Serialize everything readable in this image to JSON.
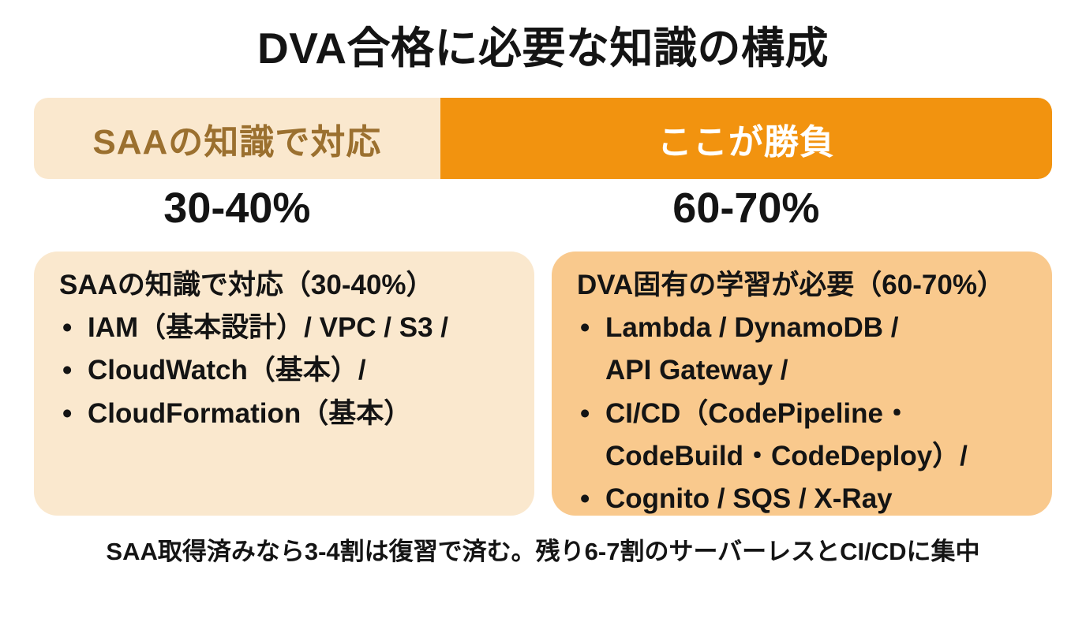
{
  "page": {
    "title": "DVA合格に必要な知識の構成",
    "footer_note": "SAA取得済みなら3-4割は復習で済む。残り6-7割のサーバーレスとCI/CDに集中"
  },
  "colors": {
    "background": "#FFFFFF",
    "cream": "#FAE8CE",
    "orange": "#F2930F",
    "light_orange": "#F9C98D",
    "brown_text": "#9B702F",
    "text": "#141414",
    "bar_label_light": "#FFFFFF"
  },
  "bar": {
    "left": {
      "label": "SAAの知識で対応",
      "percent": "30-40%"
    },
    "right": {
      "label": "ここが勝負",
      "percent": "60-70%"
    }
  },
  "boxes": {
    "left": {
      "heading": "SAAの知識で対応（30-40%）",
      "items": [
        "IAM（基本設計）/ VPC / S3 /",
        "CloudWatch（基本）/",
        "CloudFormation（基本）"
      ]
    },
    "right": {
      "heading": "DVA固有の学習が必要（60-70%）",
      "items": [
        "Lambda / DynamoDB /\nAPI Gateway /",
        "CI/CD（CodePipeline・\nCodeBuild・CodeDeploy）/",
        "Cognito / SQS / X-Ray"
      ]
    }
  },
  "chart_data": {
    "type": "bar",
    "subtype": "stacked-percentage-bar",
    "title": "DVA合格に必要な知識の構成",
    "orientation": "horizontal",
    "xlim": [
      0,
      100
    ],
    "segments": [
      {
        "label": "SAAの知識で対応",
        "range_label": "30-40%",
        "value_min": 30,
        "value_max": 40,
        "approx_width_percent": 40,
        "color": "#FAE8CE",
        "label_color": "#9B702F",
        "detail_heading": "SAAの知識で対応（30-40%）",
        "detail_items": [
          "IAM（基本設計）/ VPC / S3 /",
          "CloudWatch（基本）/",
          "CloudFormation（基本）"
        ]
      },
      {
        "label": "ここが勝負",
        "range_label": "60-70%",
        "value_min": 60,
        "value_max": 70,
        "approx_width_percent": 60,
        "color": "#F2930F",
        "label_color": "#FFFFFF",
        "detail_heading": "DVA固有の学習が必要（60-70%）",
        "detail_items": [
          "Lambda / DynamoDB / API Gateway /",
          "CI/CD（CodePipeline・CodeBuild・CodeDeploy）/",
          "Cognito / SQS / X-Ray"
        ]
      }
    ],
    "annotation": "SAA取得済みなら3-4割は復習で済む。残り6-7割のサーバーレスとCI/CDに集中"
  }
}
